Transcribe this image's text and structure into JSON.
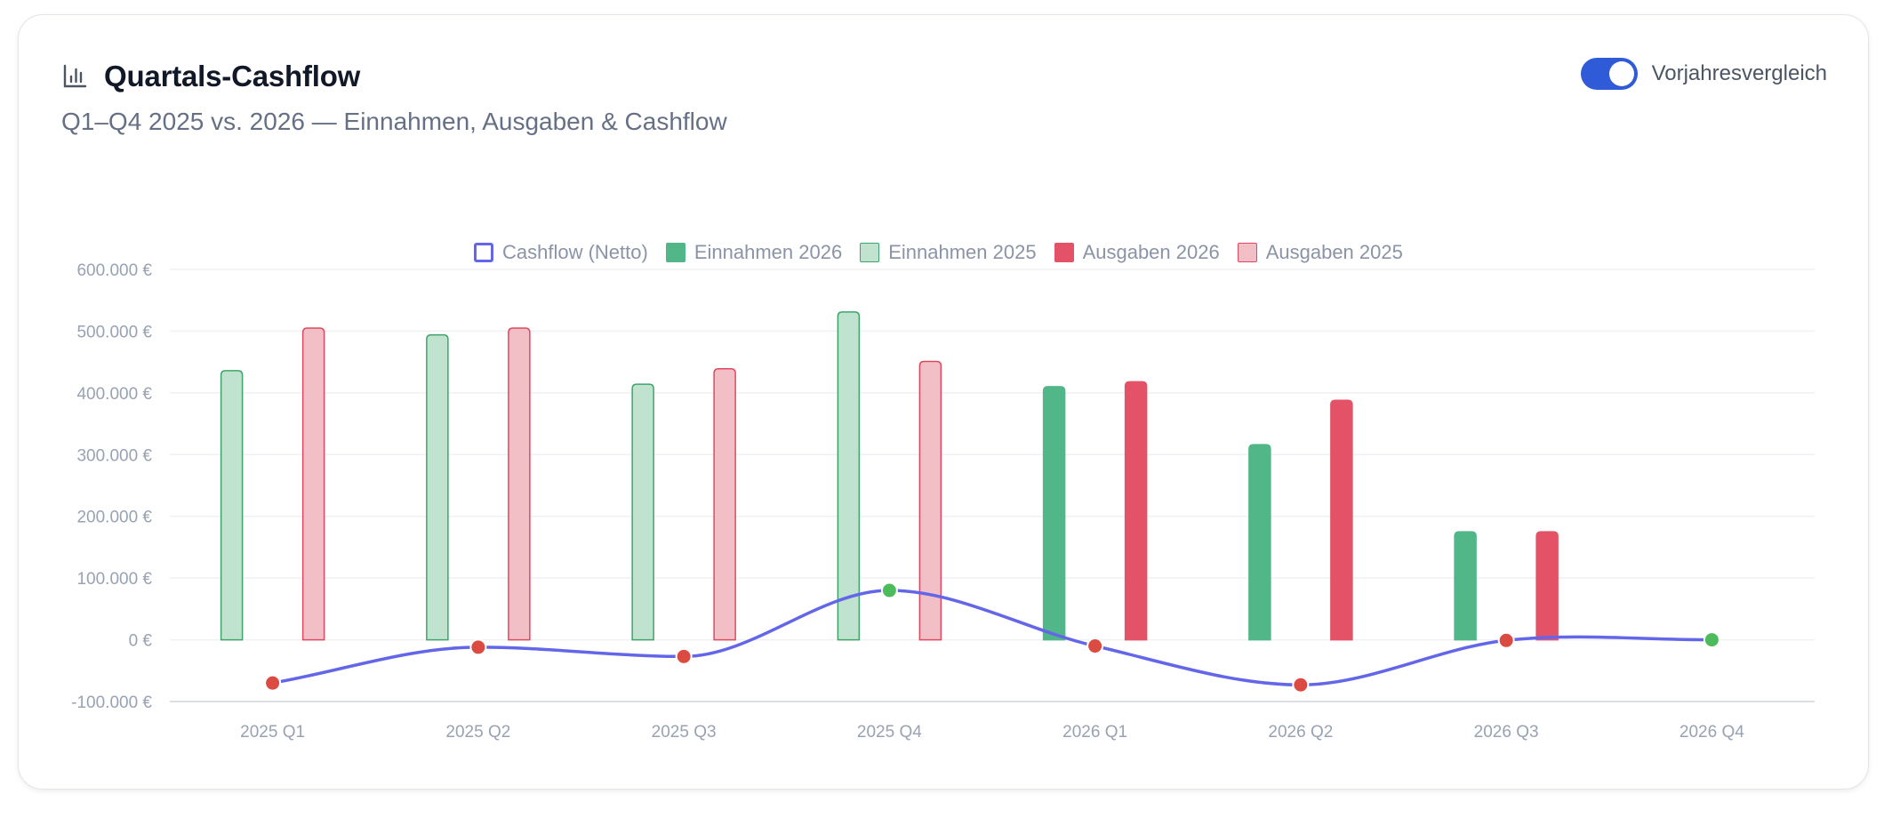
{
  "header": {
    "title": "Quartals-Cashflow",
    "title_icon": "bar-chart-icon",
    "subtitle": "Q1–Q4 2025 vs. 2026 — Einnahmen, Ausgaben & Cashflow"
  },
  "toggle": {
    "label": "Vorjahresvergleich",
    "checked": true,
    "color": "#2f5bd9"
  },
  "chart_data": {
    "type": "bar",
    "categories": [
      "2025 Q1",
      "2025 Q2",
      "2025 Q3",
      "2025 Q4",
      "2026 Q1",
      "2026 Q2",
      "2026 Q3",
      "2026 Q4"
    ],
    "y_ticks": [
      "600.000 €",
      "500.000 €",
      "400.000 €",
      "300.000 €",
      "200.000 €",
      "100.000 €",
      "0 €",
      "-100.000 €"
    ],
    "ylim": [
      -100000,
      600000
    ],
    "grid": true,
    "legend_position": "top-center",
    "series": [
      {
        "name": "Cashflow (Netto)",
        "kind": "line",
        "color": "#6366e8",
        "values": [
          -70000,
          -12000,
          -27000,
          80000,
          -10000,
          -73000,
          -1000,
          0
        ]
      },
      {
        "name": "Einnahmen 2026",
        "kind": "bar",
        "color": "#52b788",
        "fill": "#52b788",
        "values": [
          null,
          null,
          null,
          null,
          410000,
          316000,
          175000,
          null
        ]
      },
      {
        "name": "Einnahmen 2025",
        "kind": "bar",
        "color": "#3fa46a",
        "fill": "#bfe3cf",
        "values": [
          436000,
          494000,
          414000,
          531000,
          null,
          null,
          null,
          null
        ]
      },
      {
        "name": "Ausgaben 2026",
        "kind": "bar",
        "color": "#e35266",
        "fill": "#e35266",
        "values": [
          null,
          null,
          null,
          null,
          418000,
          388000,
          175000,
          null
        ]
      },
      {
        "name": "Ausgaben 2025",
        "kind": "bar",
        "color": "#dd4a5f",
        "fill": "#f3bfc6",
        "values": [
          505000,
          505000,
          439000,
          451000,
          null,
          null,
          null,
          null
        ]
      }
    ],
    "point_colors": {
      "positive": "#4cbb5b",
      "negative": "#dc4b42"
    }
  }
}
